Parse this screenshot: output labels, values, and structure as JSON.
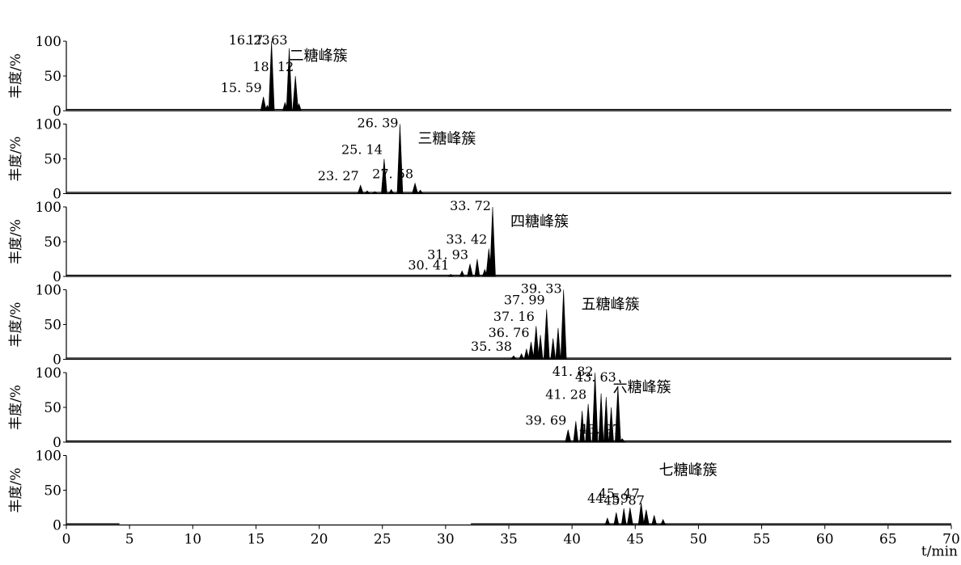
{
  "chart_data": [
    {
      "type": "line",
      "panel": 1,
      "ylabel": "丰度/%",
      "ylim": [
        0,
        100
      ],
      "yticks": [
        "100",
        "50",
        "0"
      ],
      "annotation": "二糖峰簇",
      "peaks": [
        {
          "x": 15.59,
          "y": 20,
          "label": "15. 59"
        },
        {
          "x": 16.23,
          "y": 100,
          "label": "16. 23"
        },
        {
          "x": 17.63,
          "y": 90,
          "label": "17. 63"
        },
        {
          "x": 18.12,
          "y": 50,
          "label": "18. 12"
        }
      ],
      "minor": [
        {
          "x": 15.9,
          "y": 8
        },
        {
          "x": 17.3,
          "y": 12
        },
        {
          "x": 18.4,
          "y": 10
        }
      ],
      "baseline": [
        [
          0,
          70
        ]
      ]
    },
    {
      "type": "line",
      "panel": 2,
      "ylabel": "丰度/%",
      "ylim": [
        0,
        100
      ],
      "yticks": [
        "100",
        "50",
        "0"
      ],
      "annotation": "三糖峰簇",
      "peaks": [
        {
          "x": 23.27,
          "y": 12,
          "label": "23. 27"
        },
        {
          "x": 25.14,
          "y": 50,
          "label": "25. 14"
        },
        {
          "x": 26.39,
          "y": 100,
          "label": "26. 39"
        },
        {
          "x": 27.58,
          "y": 15,
          "label": "27. 58"
        }
      ],
      "minor": [
        {
          "x": 23.8,
          "y": 4
        },
        {
          "x": 24.4,
          "y": 3
        },
        {
          "x": 25.7,
          "y": 6
        },
        {
          "x": 28.0,
          "y": 5
        }
      ],
      "baseline": [
        [
          0,
          70
        ]
      ]
    },
    {
      "type": "line",
      "panel": 3,
      "ylabel": "丰度/%",
      "ylim": [
        0,
        100
      ],
      "yticks": [
        "100",
        "50",
        "0"
      ],
      "annotation": "四糖峰簇",
      "peaks": [
        {
          "x": 30.41,
          "y": 3,
          "label": "30. 41"
        },
        {
          "x": 31.93,
          "y": 18,
          "label": "31. 93"
        },
        {
          "x": 33.42,
          "y": 40,
          "label": "33. 42"
        },
        {
          "x": 33.72,
          "y": 100,
          "label": "33. 72"
        }
      ],
      "minor": [
        {
          "x": 31.3,
          "y": 8
        },
        {
          "x": 32.5,
          "y": 25
        },
        {
          "x": 33.1,
          "y": 10
        }
      ],
      "baseline": [
        [
          0,
          70
        ]
      ]
    },
    {
      "type": "line",
      "panel": 4,
      "ylabel": "丰度/%",
      "ylim": [
        0,
        100
      ],
      "yticks": [
        "100",
        "50",
        "0"
      ],
      "annotation": "五糖峰簇",
      "peaks": [
        {
          "x": 35.38,
          "y": 5,
          "label": "35. 38"
        },
        {
          "x": 36.76,
          "y": 25,
          "label": "36. 76"
        },
        {
          "x": 37.16,
          "y": 48,
          "label": "37. 16"
        },
        {
          "x": 37.99,
          "y": 72,
          "label": "37. 99"
        },
        {
          "x": 39.33,
          "y": 100,
          "label": "39. 33"
        }
      ],
      "minor": [
        {
          "x": 36.0,
          "y": 8
        },
        {
          "x": 36.4,
          "y": 15
        },
        {
          "x": 37.5,
          "y": 35
        },
        {
          "x": 38.5,
          "y": 30
        },
        {
          "x": 38.9,
          "y": 45
        }
      ],
      "baseline": [
        [
          0,
          70
        ]
      ]
    },
    {
      "type": "line",
      "panel": 5,
      "ylabel": "丰度/%",
      "ylim": [
        0,
        100
      ],
      "yticks": [
        "100",
        "50",
        "0"
      ],
      "annotation": "六糖峰簇",
      "peaks": [
        {
          "x": 39.69,
          "y": 18,
          "label": "39. 69"
        },
        {
          "x": 41.28,
          "y": 55,
          "label": "41. 28"
        },
        {
          "x": 41.82,
          "y": 100,
          "label": "41. 82"
        },
        {
          "x": 43.63,
          "y": 80,
          "label": "43. 63"
        },
        {
          "x": 43.97,
          "y": 5,
          "label": "43. 97"
        }
      ],
      "minor": [
        {
          "x": 40.3,
          "y": 30
        },
        {
          "x": 40.8,
          "y": 45
        },
        {
          "x": 42.3,
          "y": 70
        },
        {
          "x": 42.7,
          "y": 65
        },
        {
          "x": 43.1,
          "y": 50
        }
      ],
      "baseline": [
        [
          0,
          70
        ]
      ]
    },
    {
      "type": "line",
      "panel": 6,
      "ylabel": "丰度/%",
      "ylim": [
        0,
        100
      ],
      "yticks": [
        "100",
        "50",
        "0"
      ],
      "annotation": "七糖峰簇",
      "peaks": [
        {
          "x": 44.59,
          "y": 25,
          "label": "44. 59"
        },
        {
          "x": 45.47,
          "y": 32,
          "label": "45. 47"
        },
        {
          "x": 45.87,
          "y": 22,
          "label": "45. 87"
        }
      ],
      "minor": [
        {
          "x": 42.8,
          "y": 10
        },
        {
          "x": 43.5,
          "y": 18
        },
        {
          "x": 44.1,
          "y": 24
        },
        {
          "x": 46.5,
          "y": 14
        },
        {
          "x": 47.2,
          "y": 8
        }
      ],
      "baseline": [
        [
          0,
          4.2
        ],
        [
          32,
          70
        ]
      ],
      "xlabel": "t/min",
      "xlim": [
        0,
        70
      ],
      "xticks": [
        "0",
        "5",
        "10",
        "15",
        "20",
        "25",
        "30",
        "35",
        "40",
        "45",
        "50",
        "55",
        "60",
        "65",
        "70"
      ]
    }
  ]
}
